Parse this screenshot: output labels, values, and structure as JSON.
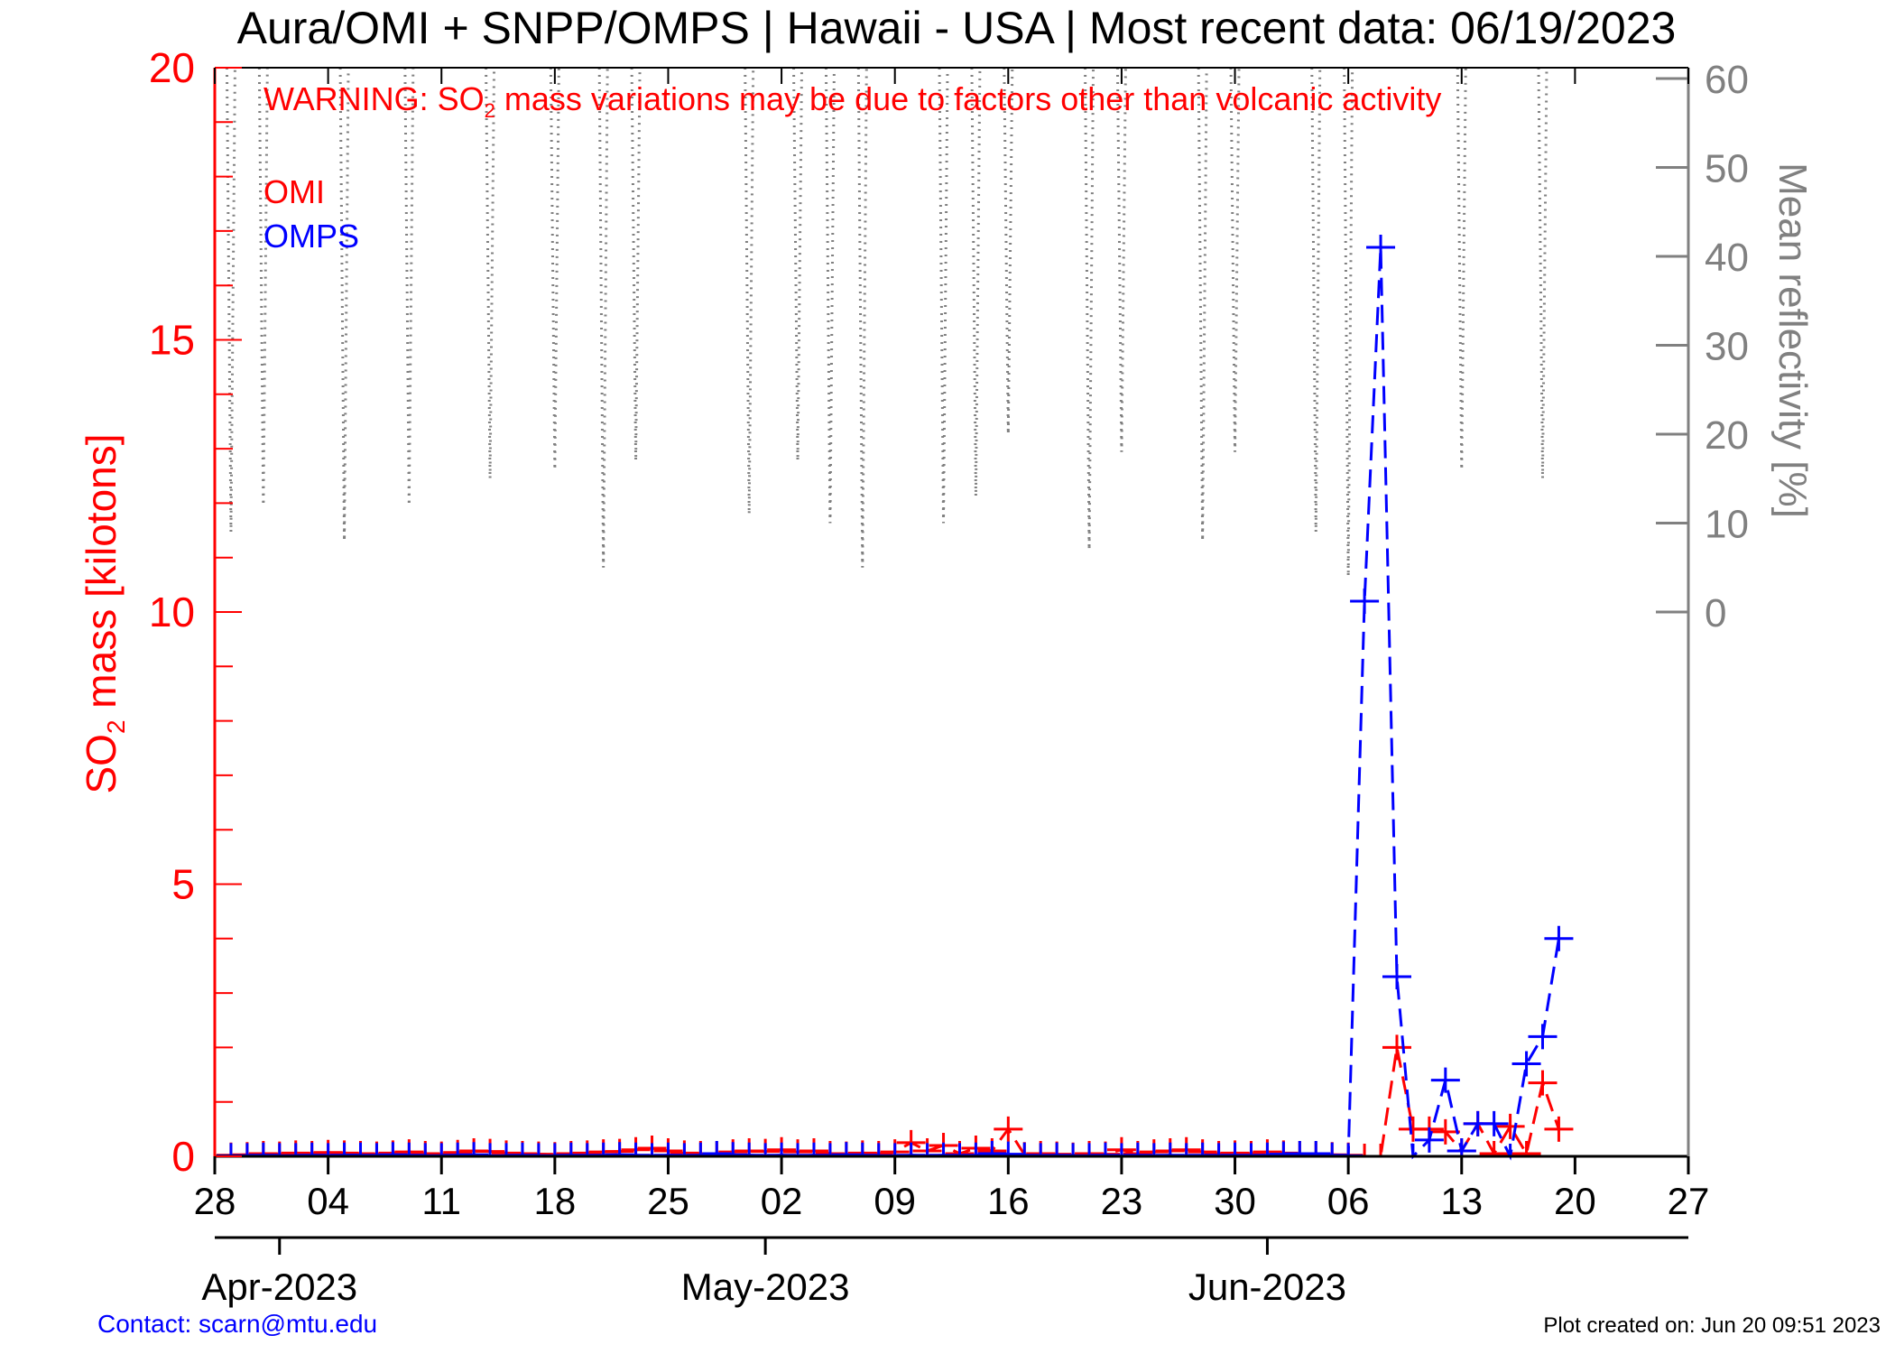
{
  "chart_data": {
    "type": "line",
    "title": "Aura/OMI + SNPP/OMPS | Hawaii - USA | Most recent data: 06/19/2023",
    "warning": {
      "prefix": "WARNING: SO",
      "sub": "2",
      "suffix": " mass variations may be due to factors other than volcanic activity"
    },
    "ylabel": {
      "prefix": "SO",
      "sub": "2",
      "suffix": " mass [kilotons]"
    },
    "y2label": "Mean reflectivity [%]",
    "ylim": [
      0,
      20
    ],
    "y2lim": [
      0,
      60
    ],
    "yticks": [
      "0",
      "5",
      "10",
      "15",
      "20"
    ],
    "y2ticks": [
      "0",
      "10",
      "20",
      "30",
      "40",
      "50",
      "60"
    ],
    "x_start": "2023-03-28",
    "x_days": 91,
    "xticks": [
      "28",
      "04",
      "11",
      "18",
      "25",
      "02",
      "09",
      "16",
      "23",
      "30",
      "06",
      "13",
      "20",
      "27"
    ],
    "months": [
      {
        "label": "Apr-2023",
        "day": 4
      },
      {
        "label": "May-2023",
        "day": 34
      },
      {
        "label": "Jun-2023",
        "day": 65
      }
    ],
    "legend": [
      "OMI",
      "OMPS"
    ],
    "legend_placement": "top-left",
    "series": [
      {
        "name": "OMI",
        "color": "#ff0000",
        "start_day": 1,
        "values": [
          0.02,
          0.03,
          0.05,
          0.04,
          0.06,
          0.05,
          0.07,
          0.06,
          0.05,
          0.04,
          0.06,
          0.08,
          0.05,
          0.04,
          0.07,
          0.1,
          0.09,
          0.06,
          0.05,
          0.04,
          0.03,
          0.05,
          0.06,
          0.08,
          0.09,
          0.12,
          0.15,
          0.1,
          0.06,
          0.05,
          0.04,
          0.08,
          0.1,
          0.09,
          0.12,
          0.08,
          0.1,
          0.05,
          0.04,
          0.06,
          0.05,
          0.08,
          0.25,
          0.1,
          0.2,
          0.05,
          0.15,
          0.1,
          0.5,
          0.03,
          0.05,
          0.04,
          0.02,
          0.05,
          0.04,
          0.12,
          0.05,
          0.08,
          0.1,
          0.12,
          0.08,
          0.05,
          0.06,
          0.05,
          0.08,
          0.06,
          0.05,
          0.04,
          0.03,
          0.02,
          0.0,
          0.0,
          2.0,
          0.5,
          0.5,
          0.45,
          0.1,
          0.6,
          0.05,
          0.55,
          0.05,
          1.35,
          0.5
        ]
      },
      {
        "name": "OMPS",
        "color": "#0000ff",
        "start_day": 1,
        "values": [
          0.01,
          0.01,
          0.02,
          0.01,
          0.01,
          0.02,
          0.01,
          0.02,
          0.02,
          0.01,
          0.03,
          0.02,
          0.01,
          0.01,
          0.02,
          0.03,
          0.01,
          0.01,
          0.02,
          0.01,
          0.01,
          0.02,
          0.01,
          0.02,
          0.03,
          0.02,
          0.01,
          0.02,
          0.01,
          0.02,
          0.05,
          0.03,
          0.02,
          0.01,
          0.02,
          0.01,
          0.02,
          0.01,
          0.03,
          0.02,
          0.01,
          0.01,
          0.02,
          0.01,
          0.02,
          0.01,
          0.02,
          0.05,
          0.04,
          0.02,
          0.01,
          0.02,
          0.01,
          0.01,
          0.02,
          0.01,
          0.02,
          0.01,
          0.02,
          0.01,
          0.02,
          0.01,
          0.02,
          0.01,
          0.02,
          0.04,
          0.05,
          0.05,
          0.02,
          0.01,
          10.2,
          16.7,
          3.3,
          0.0,
          0.3,
          1.4,
          0.1,
          0.6,
          0.6,
          0.0,
          1.7,
          2.2,
          4.0
        ]
      },
      {
        "name": "Mean reflectivity",
        "color": "#808080",
        "dips": [
          [
            1,
            9
          ],
          [
            3,
            12
          ],
          [
            8,
            8
          ],
          [
            12,
            12
          ],
          [
            17,
            15
          ],
          [
            21,
            16
          ],
          [
            24,
            5
          ],
          [
            26,
            17
          ],
          [
            33,
            11
          ],
          [
            36,
            17
          ],
          [
            38,
            10
          ],
          [
            40,
            5
          ],
          [
            45,
            10
          ],
          [
            47,
            13
          ],
          [
            49,
            20
          ],
          [
            54,
            7
          ],
          [
            56,
            18
          ],
          [
            61,
            8
          ],
          [
            63,
            18
          ],
          [
            68,
            9
          ],
          [
            70,
            4
          ],
          [
            77,
            16
          ],
          [
            82,
            15
          ]
        ]
      }
    ],
    "grid": false
  },
  "footer": {
    "contact": "Contact: scarn@mtu.edu",
    "created": "Plot created on: Jun 20 09:51 2023"
  }
}
